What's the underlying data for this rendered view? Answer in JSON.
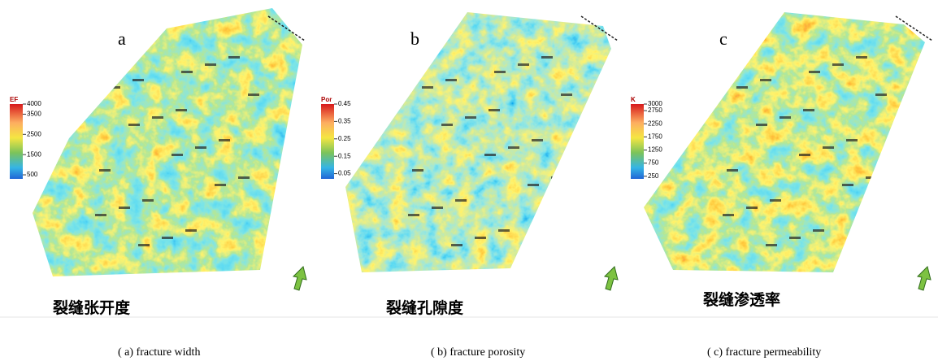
{
  "panels": [
    {
      "label": "a",
      "colorbar": {
        "title": "EF",
        "range": [
          300,
          4000
        ],
        "ticks": [
          4000,
          3500,
          2500,
          1500,
          500
        ]
      },
      "title_cn": "裂缝张开度",
      "caption": "( a)  fracture width"
    },
    {
      "label": "b",
      "colorbar": {
        "title": "Por",
        "range": [
          0.02,
          0.45
        ],
        "ticks": [
          0.45,
          0.35,
          0.25,
          0.15,
          0.05
        ]
      },
      "title_cn": "裂缝孔隙度",
      "caption": "( b)  fracture porosity"
    },
    {
      "label": "c",
      "colorbar": {
        "title": "K",
        "range": [
          150,
          3000
        ],
        "ticks": [
          3000,
          2750,
          2250,
          1750,
          1250,
          750,
          250
        ]
      },
      "title_cn": "裂缝渗透率",
      "caption": "( c)  fracture permeability"
    }
  ]
}
